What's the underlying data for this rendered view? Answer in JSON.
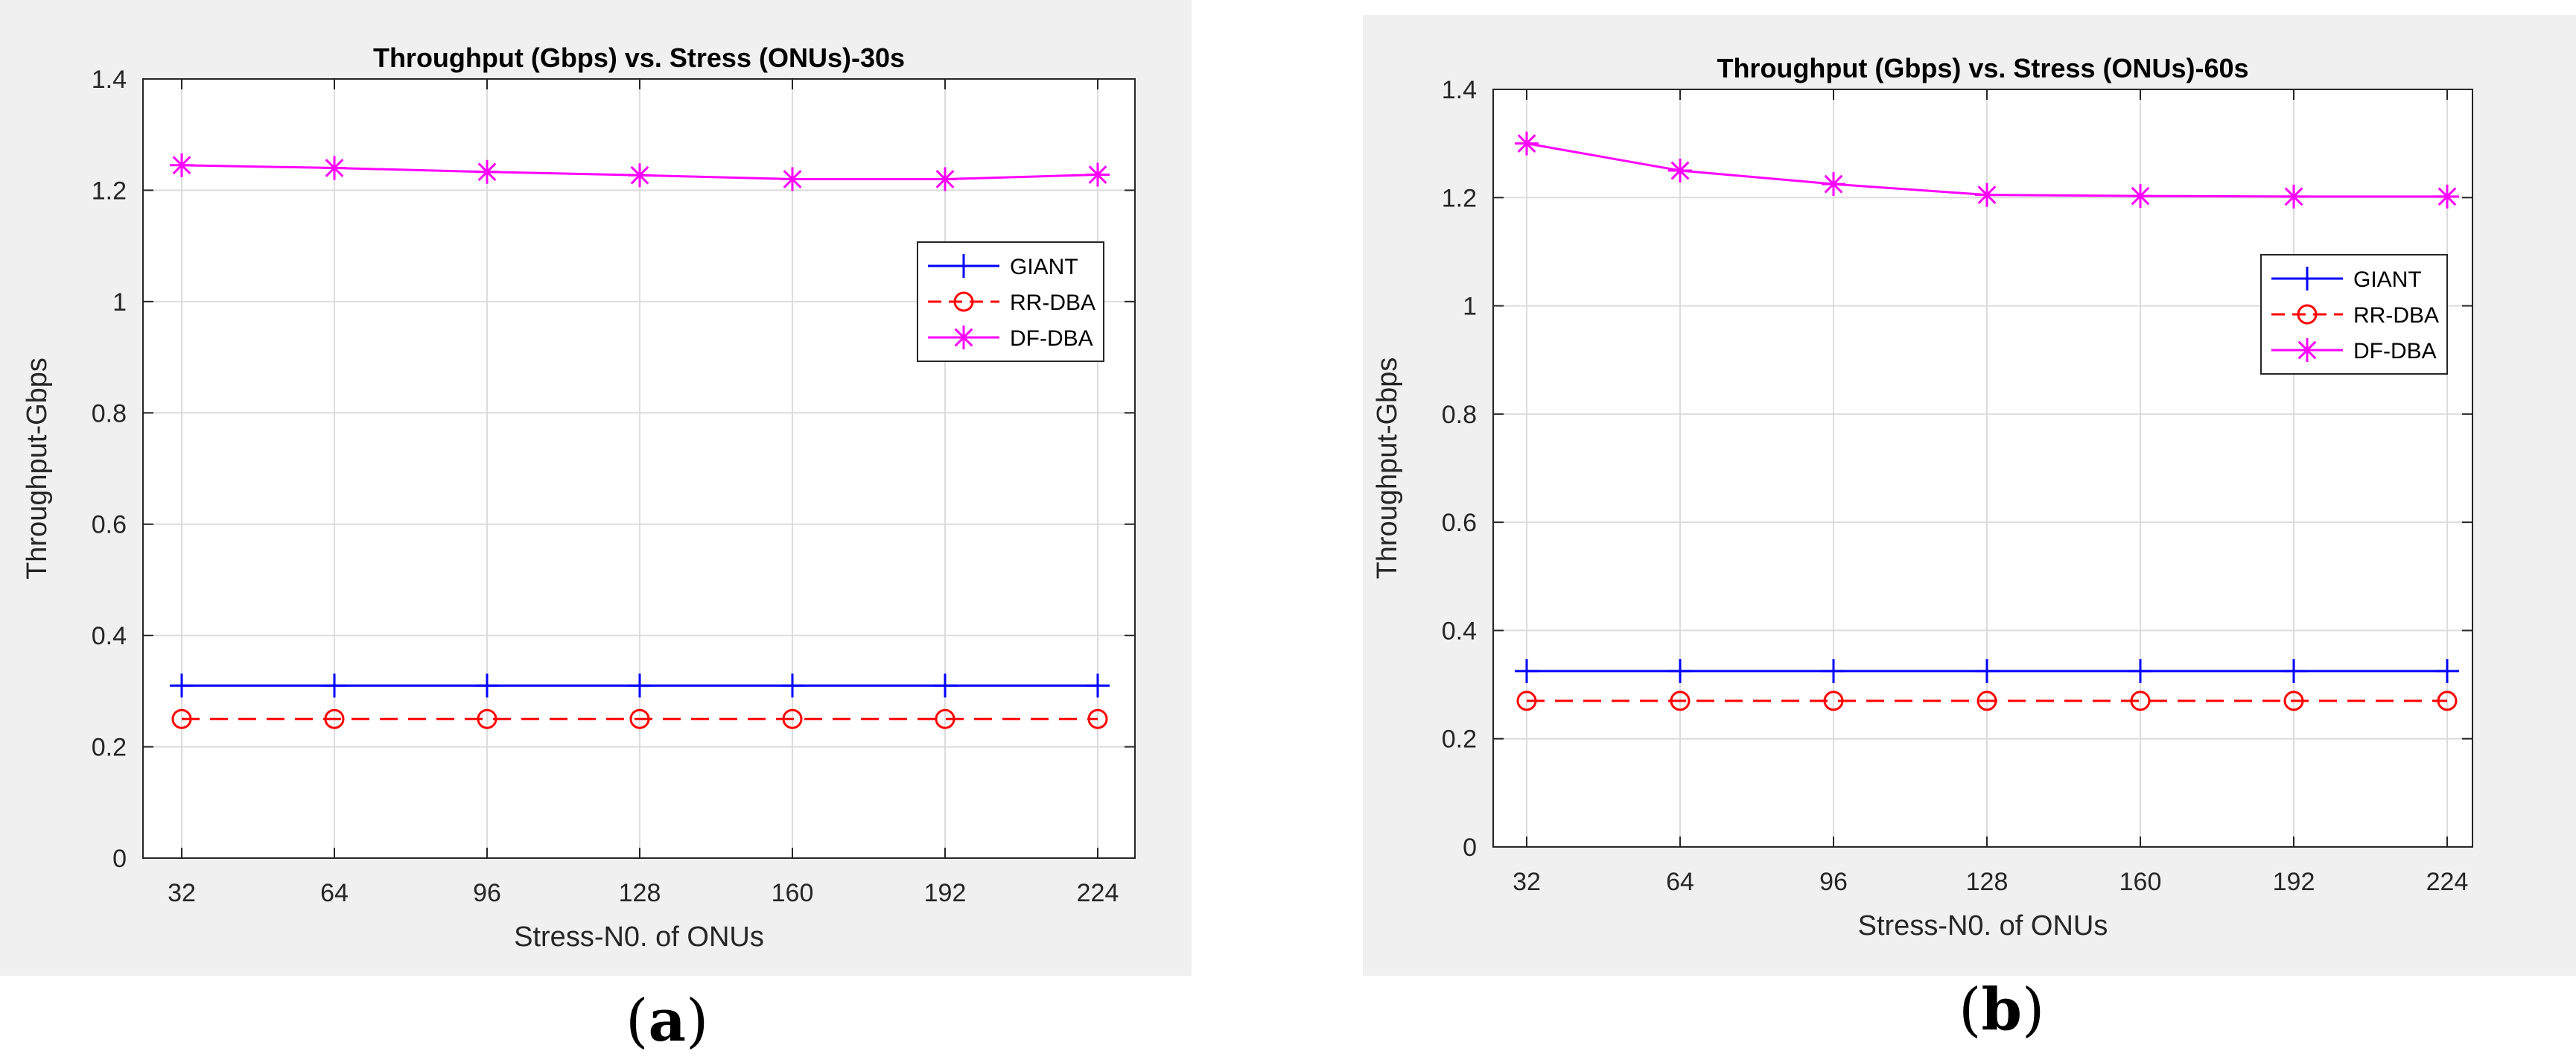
{
  "chart_data": [
    {
      "type": "line",
      "panel_label": "a",
      "title": "Throughput (Gbps) vs. Stress (ONUs)-30s",
      "xlabel": "Stress-N0. of ONUs",
      "ylabel": "Throughput-Gbps",
      "categories": [
        "32",
        "64",
        "96",
        "128",
        "160",
        "192",
        "224"
      ],
      "yticks": [
        "0",
        "0.2",
        "0.4",
        "0.6",
        "0.8",
        "1",
        "1.2",
        "1.4"
      ],
      "ylim": [
        0,
        1.4
      ],
      "grid": true,
      "legend_position": "right",
      "series": [
        {
          "name": "GIANT",
          "values": [
            0.31,
            0.31,
            0.31,
            0.31,
            0.31,
            0.31,
            0.31
          ],
          "color": "#0000ff",
          "marker": "plus",
          "dash": "solid"
        },
        {
          "name": "RR-DBA",
          "values": [
            0.25,
            0.25,
            0.25,
            0.25,
            0.25,
            0.25,
            0.25
          ],
          "color": "#ff0000",
          "marker": "circle",
          "dash": "dashed"
        },
        {
          "name": "DF-DBA",
          "values": [
            1.245,
            1.24,
            1.233,
            1.227,
            1.22,
            1.22,
            1.228
          ],
          "color": "#ff00ff",
          "marker": "asterisk",
          "dash": "solid"
        }
      ]
    },
    {
      "type": "line",
      "panel_label": "b",
      "title": "Throughput (Gbps) vs. Stress (ONUs)-60s",
      "xlabel": "Stress-N0. of ONUs",
      "ylabel": "Throughput-Gbps",
      "categories": [
        "32",
        "64",
        "96",
        "128",
        "160",
        "192",
        "224"
      ],
      "yticks": [
        "0",
        "0.2",
        "0.4",
        "0.6",
        "0.8",
        "1",
        "1.2",
        "1.4"
      ],
      "ylim": [
        0,
        1.4
      ],
      "grid": true,
      "legend_position": "right",
      "series": [
        {
          "name": "GIANT",
          "values": [
            0.325,
            0.325,
            0.325,
            0.325,
            0.325,
            0.325,
            0.325
          ],
          "color": "#0000ff",
          "marker": "plus",
          "dash": "solid"
        },
        {
          "name": "RR-DBA",
          "values": [
            0.27,
            0.27,
            0.27,
            0.27,
            0.27,
            0.27,
            0.27
          ],
          "color": "#ff0000",
          "marker": "circle",
          "dash": "dashed"
        },
        {
          "name": "DF-DBA",
          "values": [
            1.3,
            1.25,
            1.225,
            1.205,
            1.203,
            1.202,
            1.202
          ],
          "color": "#ff00ff",
          "marker": "asterisk",
          "dash": "solid"
        }
      ]
    }
  ]
}
